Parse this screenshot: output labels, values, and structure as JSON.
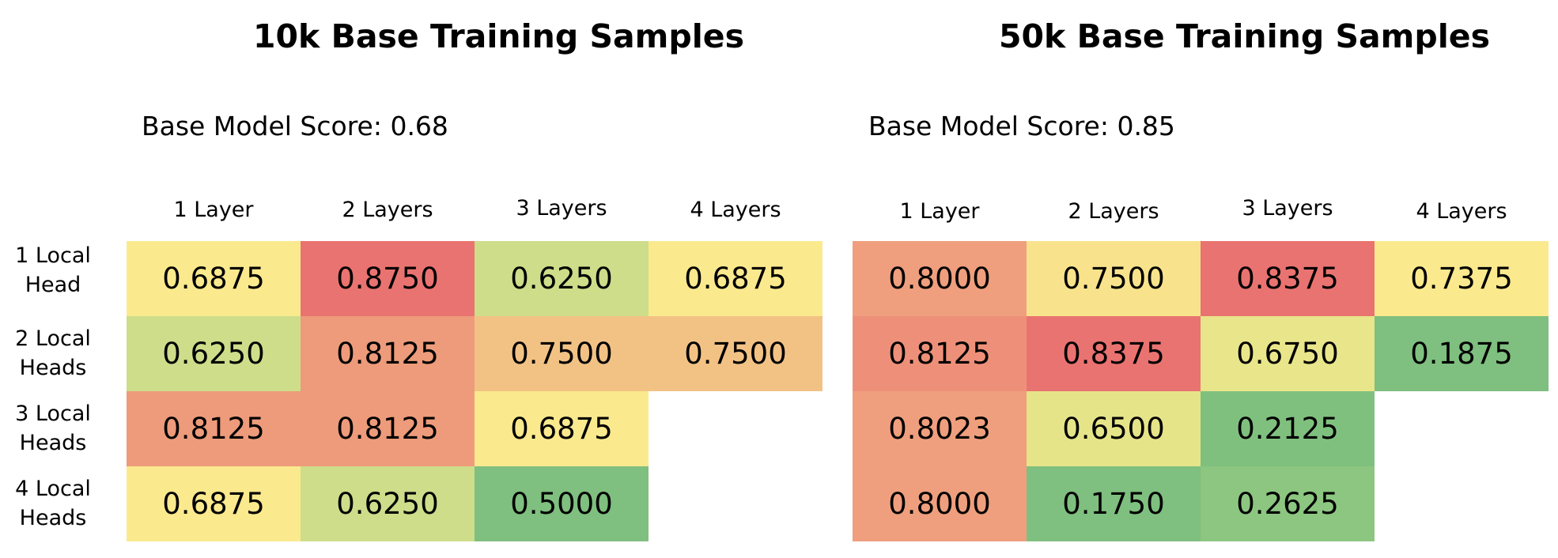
{
  "chart_data": [
    {
      "type": "heatmap",
      "title": "10k Base Training Samples",
      "subtitle": "Base Model Score: 0.68",
      "columns": [
        "1 Layer",
        "2 Layers",
        "3 Layers",
        "4 Layers"
      ],
      "rows": [
        [
          "1 Local",
          "Head"
        ],
        [
          "2 Local",
          "Heads"
        ],
        [
          "3 Local",
          "Heads"
        ],
        [
          "4 Local",
          "Heads"
        ]
      ],
      "values": [
        [
          "0.6875",
          "0.8750",
          "0.6250",
          "0.6875"
        ],
        [
          "0.6250",
          "0.8125",
          "0.7500",
          "0.7500"
        ],
        [
          "0.8125",
          "0.8125",
          "0.6875",
          null
        ],
        [
          "0.6875",
          "0.6250",
          "0.5000",
          null
        ]
      ],
      "colors": [
        [
          "#fbe98e",
          "#e97370",
          "#cddd8a",
          "#fbe98e"
        ],
        [
          "#cddd8a",
          "#ed9b7b",
          "#f2c285",
          "#f2c285"
        ],
        [
          "#ed9b7b",
          "#ed9b7b",
          "#fbe98e",
          null
        ],
        [
          "#fbe98e",
          "#cddd8a",
          "#7fbf7f",
          null
        ]
      ]
    },
    {
      "type": "heatmap",
      "title": "50k Base Training Samples",
      "subtitle": "Base Model Score: 0.85",
      "columns": [
        "1 Layer",
        "2 Layers",
        "3 Layers",
        "4 Layers"
      ],
      "rows": [
        [
          "1 Local",
          "Head"
        ],
        [
          "2 Local",
          "Heads"
        ],
        [
          "3 Local",
          "Heads"
        ],
        [
          "4 Local",
          "Heads"
        ]
      ],
      "values": [
        [
          "0.8000",
          "0.7500",
          "0.8375",
          "0.7375"
        ],
        [
          "0.8125",
          "0.8375",
          "0.6750",
          "0.1875"
        ],
        [
          "0.8023",
          "0.6500",
          "0.2125",
          null
        ],
        [
          "0.8000",
          "0.1750",
          "0.2625",
          null
        ]
      ],
      "colors": [
        [
          "#ef9f7d",
          "#f8e38c",
          "#e97370",
          "#fbe98e"
        ],
        [
          "#ee9079",
          "#e97370",
          "#e9e58a",
          "#7fbf7f"
        ],
        [
          "#ef9f7d",
          "#e6e489",
          "#80c07f",
          null
        ],
        [
          "#ef9f7d",
          "#7fbf7f",
          "#8cc680",
          null
        ]
      ]
    }
  ]
}
